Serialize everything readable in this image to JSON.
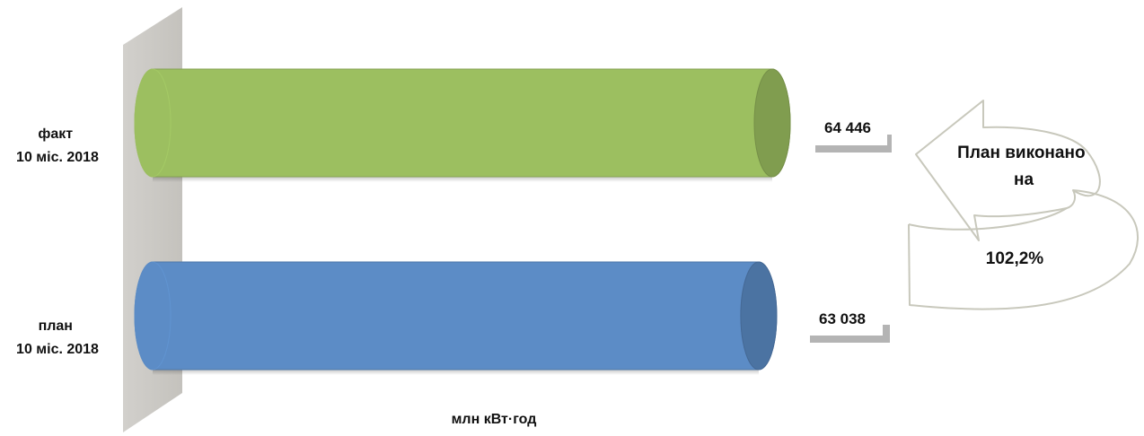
{
  "chart_data": {
    "type": "bar",
    "orientation": "horizontal",
    "style": "3d-cylinder",
    "categories": [
      [
        "факт",
        "10 міс. 2018"
      ],
      [
        "план",
        "10 міс. 2018"
      ]
    ],
    "values": [
      64446,
      63038
    ],
    "value_labels": [
      "64 446",
      "63 038"
    ],
    "colors": [
      "#9cbf60",
      "#5c8cc6"
    ],
    "unit_label": "млн кВт·год",
    "xlim": [
      0,
      64446
    ],
    "grid": false,
    "legend": "none"
  },
  "annotation": {
    "lines": [
      "План виконано",
      "на"
    ],
    "value": "102,2%"
  }
}
